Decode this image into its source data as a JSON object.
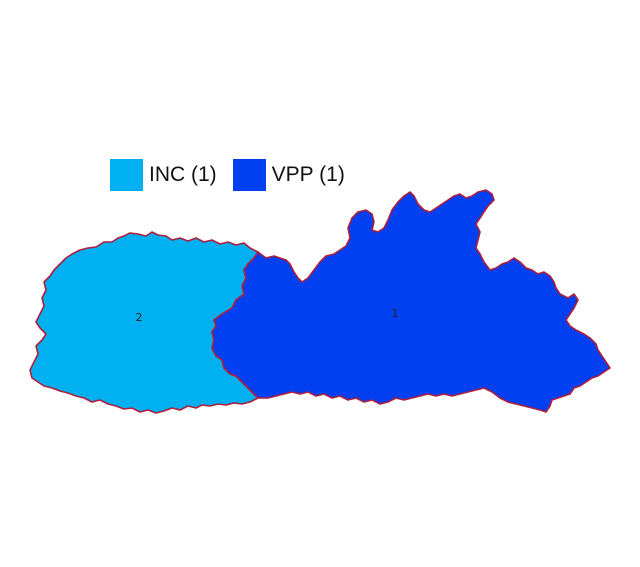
{
  "legend": [
    {
      "label": "INC (1)",
      "color": "#00B0F0"
    },
    {
      "label": "VPP (1)",
      "color": "#0040F0"
    }
  ],
  "regions": [
    {
      "number": "2",
      "party": "INC",
      "color": "#00B0F0"
    },
    {
      "number": "1",
      "party": "VPP",
      "color": "#0040F0"
    }
  ],
  "border_color": "#B01E3C"
}
